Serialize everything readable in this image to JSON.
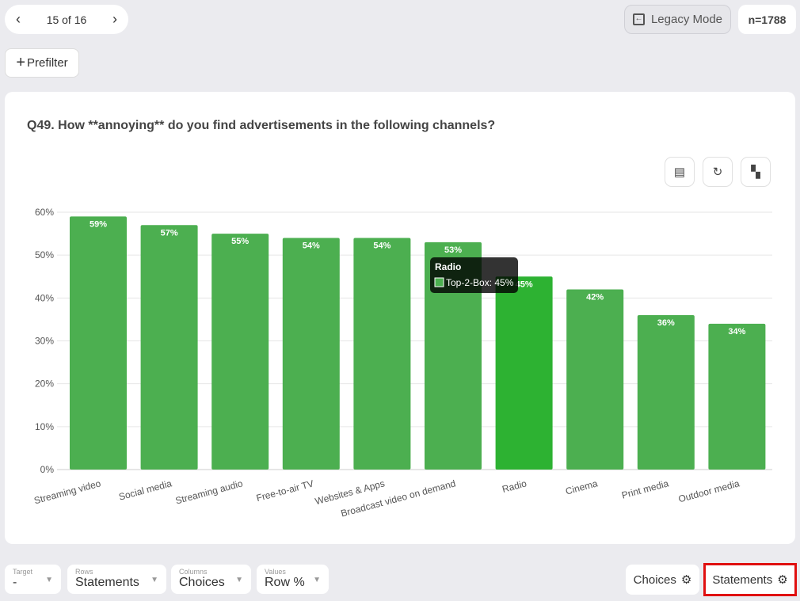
{
  "pager": {
    "label": "15 of 16",
    "prev": "‹",
    "next": "›"
  },
  "legacy_label": "Legacy Mode",
  "n_badge": "n=1788",
  "prefilter_label": "Prefilter",
  "title": "Q49. How **annoying** do you find advertisements in the following channels?",
  "tooltip": {
    "title": "Radio",
    "series": "Top-2-Box: 45%"
  },
  "controls": [
    {
      "label": "Target",
      "value": "-"
    },
    {
      "label": "Rows",
      "value": "Statements"
    },
    {
      "label": "Columns",
      "value": "Choices"
    },
    {
      "label": "Values",
      "value": "Row %"
    }
  ],
  "right_buttons": {
    "choices": "Choices",
    "statements": "Statements"
  },
  "colors": {
    "bar": "#4caf50",
    "highlight": "#2db232",
    "outline": "#e01010"
  },
  "chart_data": {
    "type": "bar",
    "title": "Q49. How **annoying** do you find advertisements in the following channels?",
    "series_name": "Top-2-Box",
    "categories": [
      "Streaming video",
      "Social media",
      "Streaming audio",
      "Free-to-air TV",
      "Websites & Apps",
      "Broadcast video on demand",
      "Radio",
      "Cinema",
      "Print media",
      "Outdoor media"
    ],
    "values": [
      59,
      57,
      55,
      54,
      54,
      53,
      45,
      42,
      36,
      34
    ],
    "ylim": [
      0,
      60
    ],
    "yticks": [
      "0%",
      "10%",
      "20%",
      "30%",
      "40%",
      "50%",
      "60%"
    ],
    "highlighted": "Radio",
    "grid": true
  }
}
